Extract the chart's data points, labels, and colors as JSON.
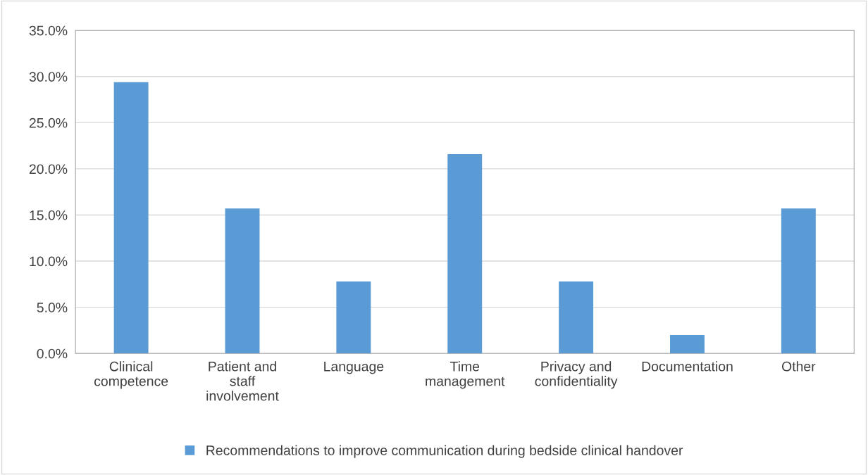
{
  "chart_data": {
    "type": "bar",
    "categories": [
      "Clinical competence",
      "Patient and staff involvement",
      "Language",
      "Time management",
      "Privacy and confidentiality",
      "Documentation",
      "Other"
    ],
    "series": [
      {
        "name": "Recommendations to improve communication during bedside clinical handover",
        "color": "#5b9bd5",
        "values": [
          29.4,
          15.7,
          7.8,
          21.6,
          7.8,
          2.0,
          15.7
        ]
      }
    ],
    "ylim": [
      0,
      35
    ],
    "yticks": [
      {
        "value": 0,
        "label": "0.0%"
      },
      {
        "value": 5,
        "label": "5.0%"
      },
      {
        "value": 10,
        "label": "10.0%"
      },
      {
        "value": 15,
        "label": "15.0%"
      },
      {
        "value": 20,
        "label": "20.0%"
      },
      {
        "value": 25,
        "label": "25.0%"
      },
      {
        "value": 30,
        "label": "30.0%"
      },
      {
        "value": 35,
        "label": "35.0%"
      }
    ],
    "grid": "y",
    "legend": "bottom"
  }
}
